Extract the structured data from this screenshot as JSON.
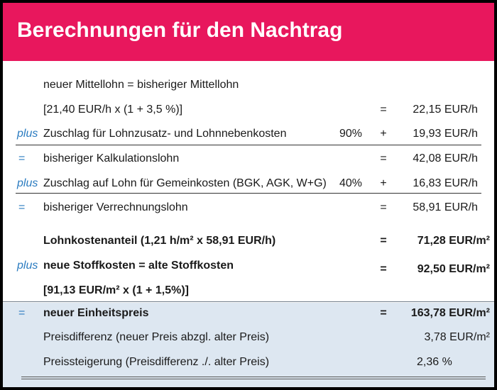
{
  "title": "Berechnungen für den Nachtrag",
  "colors": {
    "header_bg": "#e8175d",
    "accent": "#2a7bc0",
    "highlight_bg": "#dde7f1"
  },
  "rows": {
    "r1": {
      "label": "neuer Mittellohn = bisheriger Mittellohn"
    },
    "r2": {
      "label": "[21,40 EUR/h x (1 + 3,5 %)]",
      "op": "=",
      "value": "22,15 EUR/h"
    },
    "r3": {
      "prefix": "plus",
      "label": "Zuschlag für Lohnzusatz- und Lohnnebenkosten",
      "pct": "90%",
      "op": "+",
      "value": "19,93 EUR/h"
    },
    "r4": {
      "prefix": "=",
      "label": "bisheriger Kalkulationslohn",
      "op": "=",
      "value": "42,08 EUR/h"
    },
    "r5": {
      "prefix": "plus",
      "label": "Zuschlag auf Lohn für Gemeinkosten (BGK, AGK, W+G)",
      "pct": "40%",
      "op": "+",
      "value": "16,83 EUR/h"
    },
    "r6": {
      "prefix": "=",
      "label": "bisheriger Verrechnungslohn",
      "op": "=",
      "value": "58,91 EUR/h"
    },
    "r7": {
      "label": "Lohnkostenanteil (1,21 h/m² x 58,91 EUR/h)",
      "op": "=",
      "value": "71,28 EUR/m²"
    },
    "r8": {
      "prefix": "plus",
      "label": "neue Stoffkosten = alte Stoffkosten",
      "op": "=",
      "value": "92,50 EUR/m²"
    },
    "r9": {
      "label": "[91,13 EUR/m² x (1 + 1,5%)]"
    },
    "r10": {
      "prefix": "=",
      "label": "neuer Einheitspreis",
      "op": "=",
      "value": "163,78 EUR/m²"
    },
    "r11": {
      "label": "Preisdifferenz (neuer Preis abzgl. alter Preis)",
      "value": "3,78 EUR/m²"
    },
    "r12": {
      "label": "Preissteigerung (Preisdifferenz ./. alter Preis)",
      "value": "2,36 %"
    }
  }
}
